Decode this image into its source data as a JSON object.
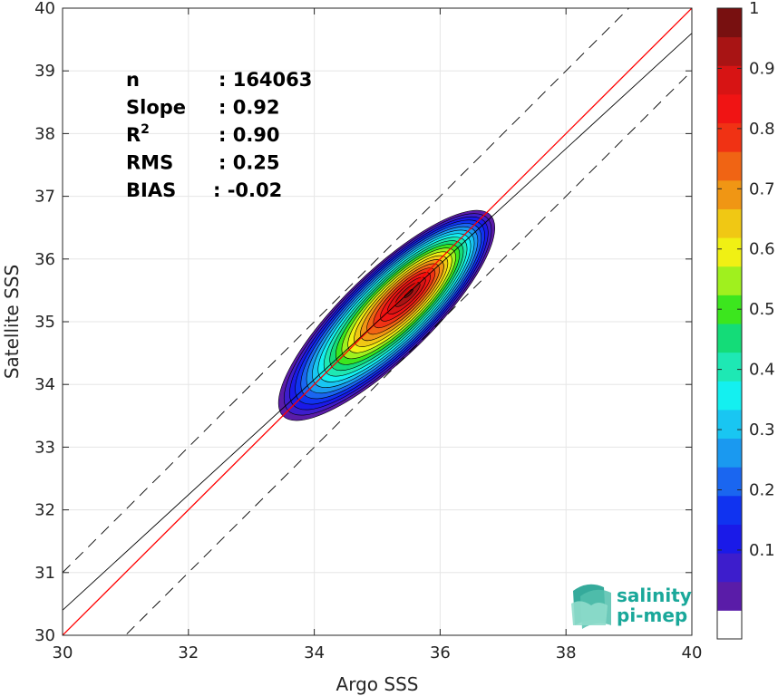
{
  "chart_data": {
    "type": "heatmap",
    "xlabel": "Argo SSS",
    "ylabel": "Satellite SSS",
    "xlim": [
      30,
      40
    ],
    "ylim": [
      30,
      40
    ],
    "xticks": [
      "30",
      "32",
      "34",
      "36",
      "38",
      "40"
    ],
    "yticks": [
      "30",
      "31",
      "32",
      "33",
      "34",
      "35",
      "36",
      "37",
      "38",
      "39",
      "40"
    ],
    "grid": true,
    "stats": [
      {
        "label": "n",
        "value": ": 164063"
      },
      {
        "label": "Slope",
        "value": ": 0.92"
      },
      {
        "label": "R",
        "sup": "2",
        "value": ": 0.90"
      },
      {
        "label": "RMS",
        "value": ": 0.25"
      },
      {
        "label": "BIAS",
        "value": ": -0.02"
      }
    ],
    "lines": [
      {
        "kind": "one-to-one",
        "color": "#ff0000",
        "style": "solid",
        "slope": 1,
        "intercept": 0
      },
      {
        "kind": "fit",
        "color": "#000000",
        "style": "solid",
        "slope": 0.92,
        "intercept": 2.8
      },
      {
        "kind": "upper-bound",
        "color": "#000000",
        "style": "dashed",
        "slope": 1,
        "intercept": 1
      },
      {
        "kind": "lower-bound",
        "color": "#000000",
        "style": "dashed",
        "slope": 1,
        "intercept": -1
      }
    ],
    "density_peak": {
      "x": 35.5,
      "y": 35.45
    },
    "density_extent": {
      "x": [
        33.5,
        36.8
      ],
      "y": [
        33.5,
        36.7
      ]
    },
    "colorbar": {
      "range": [
        0,
        1
      ],
      "ticks": [
        "0.1",
        "0.2",
        "0.3",
        "0.4",
        "0.5",
        "0.6",
        "0.7",
        "0.8",
        "0.9",
        "1"
      ],
      "levels": [
        "#ffffff",
        "#5a1ca8",
        "#3d1dcc",
        "#1a1ae8",
        "#1033f0",
        "#1a66f0",
        "#1a99f0",
        "#19c6f2",
        "#14f0f0",
        "#1ee8b4",
        "#14dc78",
        "#3ce61e",
        "#a0f01e",
        "#f0f014",
        "#f0c814",
        "#f09614",
        "#f06414",
        "#f03214",
        "#f01414",
        "#d71414",
        "#a81414",
        "#781010"
      ]
    }
  },
  "logo": {
    "line1": "salinity",
    "line2": "pi-mep",
    "color": "#1aa89a"
  }
}
